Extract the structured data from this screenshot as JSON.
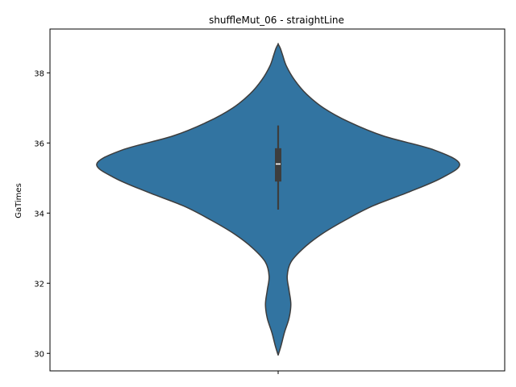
{
  "chart_data": {
    "type": "violin",
    "title": "shuffleMut_06 - straightLine",
    "xlabel": "",
    "ylabel": "GaTimes",
    "ylim": [
      29.5,
      39.25
    ],
    "yticks": [
      30,
      32,
      34,
      36,
      38
    ],
    "xticks": [
      ""
    ],
    "grid": false,
    "legend": "none",
    "fill_color": "#3274a1",
    "edge_color": "#3d3d3d",
    "box_color": "#3d3d3d",
    "median_color": "#ffffff",
    "violins": [
      {
        "category": "",
        "summary": {
          "min": 34.1,
          "q1": 34.9,
          "median": 35.4,
          "q3": 35.85,
          "max": 36.5
        },
        "density_profile": [
          {
            "y": 29.95,
            "half_width": 0.0
          },
          {
            "y": 30.2,
            "half_width": 0.015
          },
          {
            "y": 30.6,
            "half_width": 0.035
          },
          {
            "y": 31.0,
            "half_width": 0.06
          },
          {
            "y": 31.4,
            "half_width": 0.07
          },
          {
            "y": 31.8,
            "half_width": 0.06
          },
          {
            "y": 32.2,
            "half_width": 0.05
          },
          {
            "y": 32.6,
            "half_width": 0.07
          },
          {
            "y": 33.0,
            "half_width": 0.14
          },
          {
            "y": 33.4,
            "half_width": 0.24
          },
          {
            "y": 33.8,
            "half_width": 0.37
          },
          {
            "y": 34.2,
            "half_width": 0.52
          },
          {
            "y": 34.6,
            "half_width": 0.72
          },
          {
            "y": 35.0,
            "half_width": 0.9
          },
          {
            "y": 35.4,
            "half_width": 1.0
          },
          {
            "y": 35.8,
            "half_width": 0.86
          },
          {
            "y": 36.2,
            "half_width": 0.58
          },
          {
            "y": 36.6,
            "half_width": 0.39
          },
          {
            "y": 37.0,
            "half_width": 0.25
          },
          {
            "y": 37.4,
            "half_width": 0.155
          },
          {
            "y": 37.8,
            "half_width": 0.09
          },
          {
            "y": 38.2,
            "half_width": 0.045
          },
          {
            "y": 38.5,
            "half_width": 0.025
          },
          {
            "y": 38.7,
            "half_width": 0.012
          },
          {
            "y": 38.82,
            "half_width": 0.0
          }
        ]
      }
    ]
  }
}
